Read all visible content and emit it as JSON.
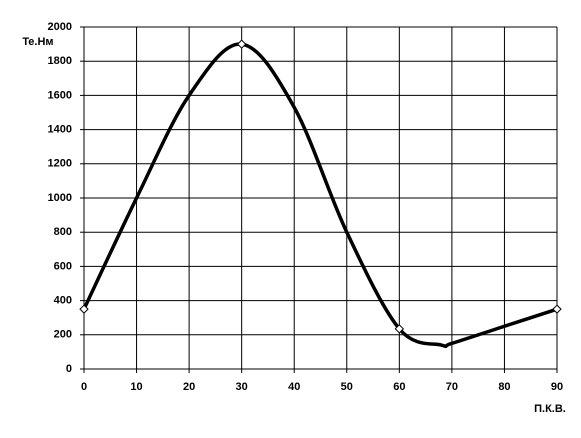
{
  "chart_data": {
    "type": "line",
    "x_label": "П.К.В.",
    "y_label": "Te.Нм",
    "series": [
      {
        "color": "#000000",
        "x": [
          0,
          10,
          20,
          30,
          40,
          50,
          60,
          68,
          70,
          80,
          90
        ],
        "values": [
          350,
          1000,
          1600,
          1900,
          1530,
          800,
          235,
          140,
          150,
          250,
          350
        ]
      }
    ],
    "markers": {
      "x": [
        0,
        30,
        60,
        90
      ],
      "values": [
        350,
        1900,
        235,
        350
      ]
    },
    "xlim": [
      0,
      90
    ],
    "xticks": [
      0,
      10,
      20,
      30,
      40,
      50,
      60,
      70,
      80,
      90
    ],
    "ylim": [
      0,
      2000
    ],
    "yticks": [
      0,
      200,
      400,
      600,
      800,
      1000,
      1200,
      1400,
      1600,
      1800,
      2000
    ],
    "grid": true
  }
}
